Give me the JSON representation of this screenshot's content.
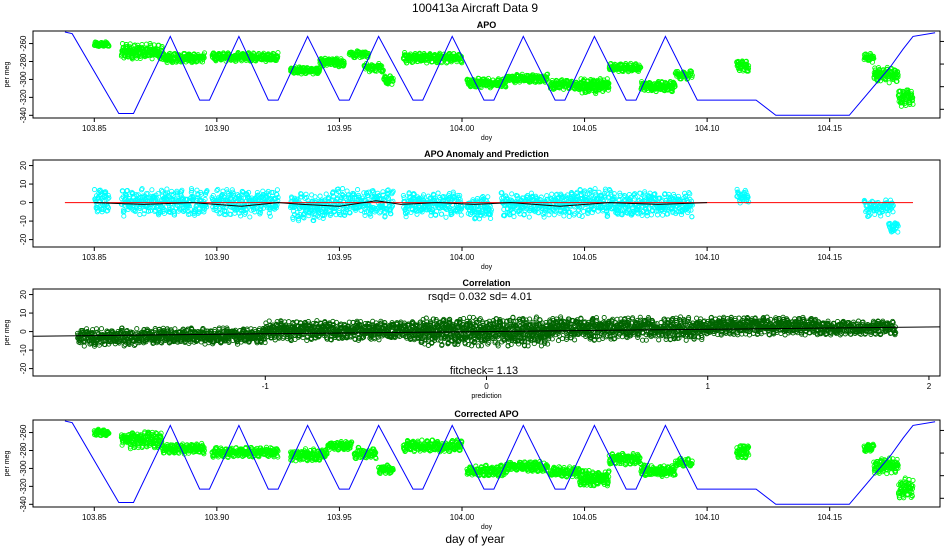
{
  "figure": {
    "title": "100413a   Aircraft Data 9",
    "xlabel": "day of year"
  },
  "colors": {
    "apo_points": "#00ff00",
    "anomaly_points": "#00ffff",
    "correlation_points": "#006400",
    "altitude_line": "#0000ff",
    "zero_line": "#ff0000",
    "fit_line": "#000000"
  },
  "chart_data": [
    {
      "id": "apo",
      "type": "scatter",
      "title": "APO",
      "xlabel": "doy",
      "ylabel": "per meg",
      "xlim": [
        103.825,
        104.195
      ],
      "ylim": [
        -343,
        -246
      ],
      "xticks": [
        103.85,
        103.9,
        103.95,
        104.0,
        104.05,
        104.1,
        104.15
      ],
      "xtick_labels": [
        "103.85",
        "103.90",
        "103.95",
        "104.00",
        "104.05",
        "104.10",
        "104.15"
      ],
      "yticks": [
        -260,
        -280,
        -300,
        -320,
        -340
      ],
      "ytick_labels": [
        "-260",
        "-280",
        "-300",
        "-320",
        "-340"
      ],
      "series": [
        {
          "name": "APO",
          "kind": "points",
          "color": "#00ff00",
          "segments": [
            [
              103.85,
              103.856,
              -258,
              -264,
              4
            ],
            [
              103.861,
              103.878,
              -260,
              -278,
              5
            ],
            [
              103.878,
              103.895,
              -270,
              -282,
              4
            ],
            [
              103.898,
              103.925,
              -270,
              -280,
              4
            ],
            [
              103.93,
              103.942,
              -286,
              -294,
              5
            ],
            [
              103.942,
              103.952,
              -276,
              -286,
              5
            ],
            [
              103.954,
              103.962,
              -268,
              -276,
              3
            ],
            [
              103.96,
              103.968,
              -282,
              -292,
              3
            ],
            [
              103.968,
              103.972,
              -296,
              -306,
              4
            ],
            [
              103.976,
              104.0,
              -270,
              -282,
              4
            ],
            [
              104.002,
              104.018,
              -298,
              -310,
              4
            ],
            [
              104.018,
              104.035,
              -294,
              -304,
              4
            ],
            [
              104.036,
              104.048,
              -300,
              -312,
              4
            ],
            [
              104.048,
              104.06,
              -298,
              -316,
              6
            ],
            [
              104.06,
              104.073,
              -282,
              -292,
              4
            ],
            [
              104.073,
              104.087,
              -302,
              -314,
              5
            ],
            [
              104.087,
              104.094,
              -290,
              -300,
              3
            ],
            [
              104.112,
              104.117,
              -278,
              -292,
              5
            ],
            [
              104.164,
              104.168,
              -270,
              -282,
              4
            ],
            [
              104.168,
              104.178,
              -286,
              -304,
              5
            ],
            [
              104.178,
              104.184,
              -310,
              -332,
              5
            ]
          ]
        },
        {
          "name": "altitude",
          "kind": "line",
          "color": "#0000ff",
          "x": [
            103.838,
            103.841,
            103.86,
            103.866,
            103.881,
            103.893,
            103.897,
            103.909,
            103.921,
            103.925,
            103.937,
            103.95,
            103.954,
            103.966,
            103.98,
            103.984,
            103.996,
            104.009,
            104.013,
            104.025,
            104.038,
            104.042,
            104.054,
            104.067,
            104.071,
            104.083,
            104.096,
            104.108,
            104.112,
            104.12,
            104.128,
            104.15,
            104.158,
            104.175,
            104.18,
            104.184,
            104.193
          ],
          "y": [
            -245,
            -249,
            -338,
            -338,
            -252,
            -323,
            -323,
            -252,
            -323,
            -323,
            -252,
            -323,
            -323,
            -252,
            -323,
            -323,
            -252,
            -323,
            -323,
            -252,
            -323,
            -323,
            -252,
            -323,
            -323,
            -252,
            -323,
            -323,
            -323,
            -323,
            -340,
            -340,
            -340,
            -285,
            -266,
            -252,
            -248
          ]
        }
      ]
    },
    {
      "id": "anomaly",
      "type": "scatter",
      "title": "APO Anomaly and Prediction",
      "xlabel": "doy",
      "ylabel": "",
      "xlim": [
        103.825,
        104.195
      ],
      "ylim": [
        -24,
        23
      ],
      "xticks": [
        103.85,
        103.9,
        103.95,
        104.0,
        104.05,
        104.1,
        104.15
      ],
      "xtick_labels": [
        "103.85",
        "103.90",
        "103.95",
        "104.00",
        "104.05",
        "104.10",
        "104.15"
      ],
      "yticks": [
        20,
        10,
        0,
        -10,
        -20
      ],
      "ytick_labels": [
        "20",
        "10",
        "0",
        "-10",
        "-20"
      ],
      "series": [
        {
          "name": "anomaly",
          "kind": "points",
          "color": "#00ffff",
          "segments": [
            [
              103.85,
              103.856,
              8,
              -6,
              4
            ],
            [
              103.861,
              103.896,
              8,
              -8,
              4
            ],
            [
              103.898,
              103.925,
              8,
              -8,
              4
            ],
            [
              103.93,
              103.945,
              6,
              -10,
              4
            ],
            [
              103.945,
              103.972,
              8,
              -8,
              4
            ],
            [
              103.976,
              104.0,
              6,
              -8,
              4
            ],
            [
              104.002,
              104.012,
              4,
              -10,
              4
            ],
            [
              104.016,
              104.048,
              6,
              -8,
              4
            ],
            [
              104.048,
              104.062,
              8,
              -8,
              4
            ],
            [
              104.062,
              104.094,
              6,
              -8,
              4
            ],
            [
              104.112,
              104.117,
              8,
              -2,
              3
            ],
            [
              104.164,
              104.176,
              2,
              -8,
              3
            ],
            [
              104.174,
              104.178,
              -10,
              -18,
              3
            ]
          ]
        },
        {
          "name": "zero",
          "kind": "line",
          "color": "#ff0000",
          "x": [
            103.838,
            104.184
          ],
          "y": [
            0,
            0
          ]
        },
        {
          "name": "prediction",
          "kind": "line",
          "color": "#000000",
          "x": [
            103.85,
            103.87,
            103.89,
            103.91,
            103.925,
            103.935,
            103.95,
            103.965,
            103.975,
            103.99,
            104.005,
            104.02,
            104.04,
            104.06,
            104.08,
            104.1
          ],
          "y": [
            0,
            -1,
            0,
            -2,
            0,
            -1,
            -2,
            1,
            -1,
            0,
            -1,
            0,
            -2,
            0,
            -1,
            0
          ]
        }
      ]
    },
    {
      "id": "correlation",
      "type": "scatter",
      "title": "Correlation",
      "xlabel": "prediction",
      "ylabel": "per meg",
      "xlim": [
        -2.05,
        2.05
      ],
      "ylim": [
        -24,
        23
      ],
      "xticks": [
        -1,
        0,
        1,
        2
      ],
      "xtick_labels": [
        "-1",
        "0",
        "1",
        "2"
      ],
      "yticks": [
        20,
        10,
        0,
        -10,
        -20
      ],
      "ytick_labels": [
        "20",
        "10",
        "0",
        "-10",
        "-20"
      ],
      "annotations": {
        "stats": "rsqd= 0.032 sd= 4.01",
        "fitcheck": "fitcheck= 1.13"
      },
      "series": [
        {
          "name": "points",
          "kind": "points",
          "color": "#006400",
          "segments": [
            [
              -1.85,
              -1.55,
              2,
              -8,
              4
            ],
            [
              -1.55,
              -1.0,
              2,
              -7,
              5
            ],
            [
              -1.0,
              -0.3,
              6,
              -5,
              5
            ],
            [
              -0.3,
              0.3,
              8,
              -8,
              6
            ],
            [
              0.3,
              1.0,
              8,
              -5,
              5
            ],
            [
              1.0,
              1.5,
              8,
              -2,
              5
            ],
            [
              1.5,
              1.85,
              6,
              -2,
              4
            ]
          ]
        },
        {
          "name": "fit",
          "kind": "line",
          "color": "#000000",
          "x": [
            -2.05,
            2.05
          ],
          "y": [
            -2.5,
            2.5
          ]
        }
      ]
    },
    {
      "id": "corrected",
      "type": "scatter",
      "title": "Corrected APO",
      "xlabel": "doy",
      "ylabel": "per meg",
      "xlim": [
        103.825,
        104.195
      ],
      "ylim": [
        -343,
        -246
      ],
      "xticks": [
        103.85,
        103.9,
        103.95,
        104.0,
        104.05,
        104.1,
        104.15
      ],
      "xtick_labels": [
        "103.85",
        "103.90",
        "103.95",
        "104.00",
        "104.05",
        "104.10",
        "104.15"
      ],
      "yticks": [
        -260,
        -280,
        -300,
        -320,
        -340
      ],
      "ytick_labels": [
        "-260",
        "-280",
        "-300",
        "-320",
        "-340"
      ],
      "series": [
        {
          "name": "corrected APO",
          "kind": "points",
          "color": "#00ff00",
          "segments": [
            [
              103.85,
              103.856,
              -256,
              -264,
              4
            ],
            [
              103.861,
              103.878,
              -258,
              -278,
              5
            ],
            [
              103.878,
              103.895,
              -272,
              -284,
              4
            ],
            [
              103.898,
              103.925,
              -276,
              -288,
              4
            ],
            [
              103.93,
              103.945,
              -278,
              -292,
              5
            ],
            [
              103.945,
              103.955,
              -270,
              -280,
              4
            ],
            [
              103.956,
              103.965,
              -276,
              -290,
              4
            ],
            [
              103.966,
              103.972,
              -296,
              -306,
              4
            ],
            [
              103.976,
              104.0,
              -268,
              -282,
              4
            ],
            [
              104.002,
              104.018,
              -296,
              -310,
              4
            ],
            [
              104.018,
              104.035,
              -292,
              -304,
              4
            ],
            [
              104.036,
              104.048,
              -298,
              -310,
              4
            ],
            [
              104.048,
              104.06,
              -302,
              -320,
              6
            ],
            [
              104.06,
              104.073,
              -282,
              -296,
              4
            ],
            [
              104.073,
              104.087,
              -296,
              -310,
              5
            ],
            [
              104.087,
              104.094,
              -288,
              -298,
              3
            ],
            [
              104.112,
              104.117,
              -272,
              -290,
              5
            ],
            [
              104.164,
              104.168,
              -272,
              -282,
              4
            ],
            [
              104.168,
              104.178,
              -288,
              -306,
              5
            ],
            [
              104.178,
              104.184,
              -310,
              -334,
              5
            ]
          ]
        },
        {
          "name": "altitude",
          "kind": "line",
          "color": "#0000ff",
          "x": [
            103.838,
            103.841,
            103.86,
            103.866,
            103.881,
            103.893,
            103.897,
            103.909,
            103.921,
            103.925,
            103.937,
            103.95,
            103.954,
            103.966,
            103.98,
            103.984,
            103.996,
            104.009,
            104.013,
            104.025,
            104.038,
            104.042,
            104.054,
            104.067,
            104.071,
            104.083,
            104.096,
            104.108,
            104.112,
            104.12,
            104.128,
            104.15,
            104.158,
            104.175,
            104.18,
            104.184,
            104.193
          ],
          "y": [
            -245,
            -249,
            -338,
            -338,
            -252,
            -323,
            -323,
            -252,
            -323,
            -323,
            -252,
            -323,
            -323,
            -252,
            -323,
            -323,
            -252,
            -323,
            -323,
            -252,
            -323,
            -323,
            -252,
            -323,
            -323,
            -252,
            -323,
            -323,
            -323,
            -323,
            -340,
            -340,
            -340,
            -285,
            -266,
            -252,
            -248
          ]
        }
      ]
    }
  ]
}
